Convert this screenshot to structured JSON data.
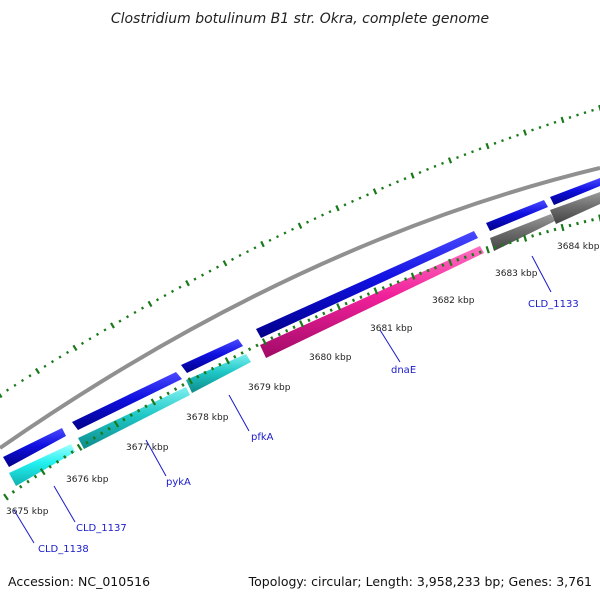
{
  "map": {
    "title": "Clostridium botulinum B1 str. Okra, complete genome",
    "accession_text": "Accession: NC_010516",
    "summary_text": "Topology: circular; Length: 3,958,233 bp; Genes: 3,761"
  },
  "ticks": [
    {
      "label": "3675 kbp",
      "kbp": 3675
    },
    {
      "label": "3676 kbp",
      "kbp": 3676
    },
    {
      "label": "3677 kbp",
      "kbp": 3677
    },
    {
      "label": "3678 kbp",
      "kbp": 3678
    },
    {
      "label": "3679 kbp",
      "kbp": 3679
    },
    {
      "label": "3680 kbp",
      "kbp": 3680
    },
    {
      "label": "3681 kbp",
      "kbp": 3681
    },
    {
      "label": "3682 kbp",
      "kbp": 3682
    },
    {
      "label": "3683 kbp",
      "kbp": 3683
    },
    {
      "label": "3684 kbp",
      "kbp": 3684
    }
  ],
  "genes": [
    {
      "name": "CLD_1138"
    },
    {
      "name": "CLD_1137"
    },
    {
      "name": "pykA"
    },
    {
      "name": "pfkA"
    },
    {
      "name": "dnaE"
    },
    {
      "name": "CLD_1133"
    }
  ],
  "colors": {
    "backbone": "#8c8c8c",
    "cds_forward": "#1010e0",
    "cds_cyan": "#20c8c8",
    "cds_magenta": "#f0209a",
    "cds_gray": "#6e6e6e",
    "tick": "#1a7a1a",
    "label_line": "#1a1acc"
  }
}
